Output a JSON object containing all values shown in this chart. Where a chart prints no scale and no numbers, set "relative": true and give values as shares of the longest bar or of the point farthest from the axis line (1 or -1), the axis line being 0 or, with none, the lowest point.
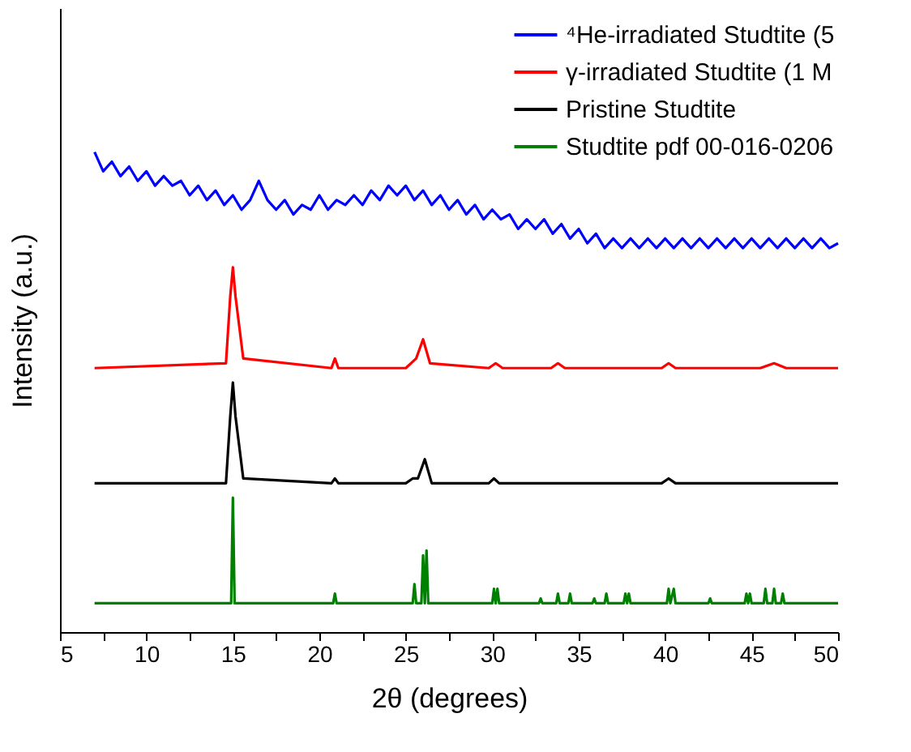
{
  "chart_data": {
    "type": "line",
    "relative": true,
    "xlabel": "2θ (degrees)",
    "ylabel": "Intensity (a.u.)",
    "xlim": [
      5,
      50
    ],
    "xticks": [
      5,
      {
        "value": 7.5,
        "label": null
      },
      10,
      {
        "value": 12.5,
        "label": null
      },
      15,
      {
        "value": 17.5,
        "label": null
      },
      20,
      {
        "value": 22.5,
        "label": null
      },
      25,
      {
        "value": 27.5,
        "label": null
      },
      30,
      {
        "value": 32.5,
        "label": null
      },
      35,
      {
        "value": 37.5,
        "label": null
      },
      40,
      {
        "value": 42.5,
        "label": null
      },
      45,
      {
        "value": 47.5,
        "label": null
      },
      50
    ],
    "grid": false,
    "legend": "top right",
    "marker": "none",
    "line_style": "solid",
    "series": [
      {
        "name": "⁴He-irradiated Studtite (5",
        "color": "#0000ff",
        "x": [
          7,
          7.5,
          8,
          8.5,
          9,
          9.5,
          10,
          10.5,
          11,
          11.5,
          12,
          12.5,
          13,
          13.5,
          14,
          14.5,
          15,
          15.5,
          16,
          16.5,
          17,
          17.5,
          18,
          18.5,
          19,
          19.5,
          20,
          20.5,
          21,
          21.5,
          22,
          22.5,
          23,
          23.5,
          24,
          24.5,
          25,
          25.5,
          26,
          26.5,
          27,
          27.5,
          28,
          28.5,
          29,
          29.5,
          30,
          30.5,
          31,
          31.5,
          32,
          32.5,
          33,
          33.5,
          34,
          34.5,
          35,
          35.5,
          36,
          36.5,
          37,
          37.5,
          38,
          38.5,
          39,
          39.5,
          40,
          40.5,
          41,
          41.5,
          42,
          42.5,
          43,
          43.5,
          44,
          44.5,
          45,
          45.5,
          46,
          46.5,
          47,
          47.5,
          48,
          48.5,
          49,
          49.5,
          50
        ],
        "values": [
          1.0,
          0.96,
          0.98,
          0.95,
          0.97,
          0.94,
          0.96,
          0.93,
          0.95,
          0.93,
          0.94,
          0.91,
          0.93,
          0.9,
          0.92,
          0.89,
          0.91,
          0.88,
          0.9,
          0.94,
          0.9,
          0.88,
          0.9,
          0.87,
          0.89,
          0.88,
          0.91,
          0.88,
          0.9,
          0.89,
          0.91,
          0.89,
          0.92,
          0.9,
          0.93,
          0.91,
          0.93,
          0.9,
          0.92,
          0.89,
          0.91,
          0.88,
          0.9,
          0.87,
          0.89,
          0.86,
          0.88,
          0.86,
          0.87,
          0.84,
          0.86,
          0.84,
          0.86,
          0.83,
          0.85,
          0.82,
          0.84,
          0.81,
          0.83,
          0.8,
          0.82,
          0.8,
          0.82,
          0.8,
          0.82,
          0.8,
          0.82,
          0.8,
          0.82,
          0.8,
          0.82,
          0.8,
          0.82,
          0.8,
          0.82,
          0.8,
          0.82,
          0.8,
          0.82,
          0.8,
          0.82,
          0.8,
          0.82,
          0.8,
          0.82,
          0.8,
          0.81
        ]
      },
      {
        "name": "γ-irradiated Studtite (1 M",
        "color": "#ff0000",
        "x": [
          7,
          14.6,
          14.85,
          15.0,
          15.15,
          15.6,
          20.7,
          20.9,
          21.1,
          25.0,
          25.6,
          26.0,
          26.4,
          29.8,
          30.2,
          30.6,
          33.4,
          33.8,
          34.2,
          39.8,
          40.2,
          40.6,
          45.5,
          46.3,
          47.0,
          50
        ],
        "values": [
          0.55,
          0.56,
          0.7,
          0.76,
          0.7,
          0.57,
          0.55,
          0.57,
          0.55,
          0.55,
          0.57,
          0.61,
          0.56,
          0.55,
          0.56,
          0.55,
          0.55,
          0.56,
          0.55,
          0.55,
          0.56,
          0.55,
          0.55,
          0.56,
          0.55,
          0.55
        ]
      },
      {
        "name": "Pristine Studtite",
        "color": "#000000",
        "x": [
          7,
          14.6,
          14.85,
          15.0,
          15.15,
          15.6,
          20.7,
          20.9,
          21.1,
          25.0,
          25.4,
          25.7,
          26.1,
          26.5,
          29.8,
          30.1,
          30.4,
          33.5,
          33.8,
          34.1,
          39.8,
          40.2,
          40.6,
          45.6,
          46.0,
          46.5,
          50
        ],
        "values": [
          0.31,
          0.31,
          0.45,
          0.52,
          0.45,
          0.32,
          0.31,
          0.32,
          0.31,
          0.31,
          0.32,
          0.32,
          0.36,
          0.31,
          0.31,
          0.32,
          0.31,
          0.31,
          0.31,
          0.31,
          0.31,
          0.32,
          0.31,
          0.31,
          0.31,
          0.31,
          0.31
        ]
      },
      {
        "name": "Studtite pdf 00-016-0206",
        "color": "#008000",
        "x": [
          7,
          14.9,
          15.0,
          15.1,
          20.8,
          20.9,
          21.0,
          25.4,
          25.5,
          25.6,
          25.9,
          26.0,
          26.1,
          26.2,
          26.3,
          30.0,
          30.1,
          30.2,
          30.3,
          30.4,
          32.7,
          32.8,
          32.9,
          33.7,
          33.8,
          33.9,
          34.4,
          34.5,
          34.6,
          35.8,
          35.9,
          36.0,
          36.5,
          36.6,
          36.7,
          37.6,
          37.7,
          37.8,
          37.9,
          38.0,
          38.1,
          40.1,
          40.2,
          40.3,
          40.5,
          40.6,
          40.7,
          42.5,
          42.6,
          42.7,
          44.6,
          44.7,
          44.8,
          44.9,
          45.0,
          45.7,
          45.8,
          45.9,
          46.2,
          46.3,
          46.4,
          46.7,
          46.8,
          46.9,
          50
        ],
        "values": [
          0.06,
          0.06,
          0.28,
          0.06,
          0.06,
          0.08,
          0.06,
          0.06,
          0.1,
          0.06,
          0.06,
          0.16,
          0.06,
          0.17,
          0.06,
          0.06,
          0.09,
          0.06,
          0.09,
          0.06,
          0.06,
          0.07,
          0.06,
          0.06,
          0.08,
          0.06,
          0.06,
          0.08,
          0.06,
          0.06,
          0.07,
          0.06,
          0.06,
          0.08,
          0.06,
          0.06,
          0.08,
          0.06,
          0.08,
          0.06,
          0.06,
          0.06,
          0.09,
          0.06,
          0.09,
          0.06,
          0.06,
          0.06,
          0.07,
          0.06,
          0.06,
          0.08,
          0.06,
          0.08,
          0.06,
          0.06,
          0.09,
          0.06,
          0.06,
          0.09,
          0.06,
          0.06,
          0.08,
          0.06,
          0.06
        ]
      }
    ]
  }
}
